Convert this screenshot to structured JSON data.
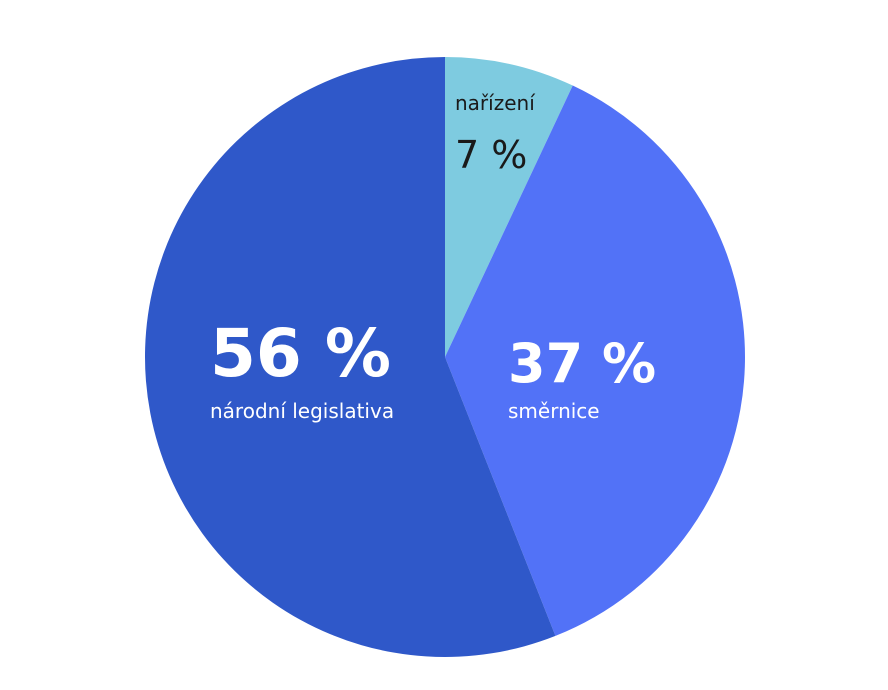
{
  "chart_data": {
    "type": "pie",
    "categories": [
      "nařízení",
      "směrnice",
      "národní legislativa"
    ],
    "values": [
      7,
      37,
      56
    ],
    "value_labels": [
      "7 %",
      "37 %",
      "56 %"
    ],
    "colors": [
      "#7ecbe0",
      "#5272f7",
      "#2f58c9"
    ]
  }
}
